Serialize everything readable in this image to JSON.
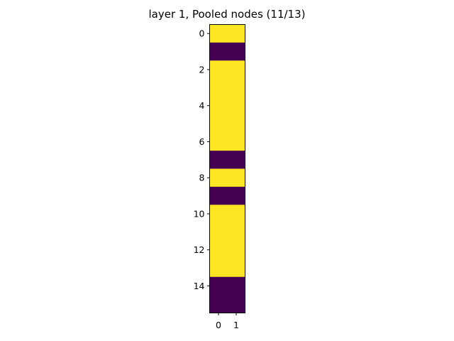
{
  "chart_data": {
    "type": "heatmap",
    "title": "layer 1, Pooled nodes (11/13)",
    "xlabel": "",
    "ylabel": "",
    "x_ticks": [
      "0",
      "1"
    ],
    "y_ticks": [
      "0",
      "2",
      "4",
      "6",
      "8",
      "10",
      "12",
      "14"
    ],
    "xlim": [
      -0.5,
      1.5
    ],
    "ylim": [
      15.5,
      -0.5
    ],
    "grid": false,
    "legend": "none",
    "colormap": "viridis",
    "colors": {
      "high": "#fde725",
      "low": "#440154"
    },
    "rows": [
      1,
      0,
      1,
      1,
      1,
      1,
      1,
      0,
      1,
      0,
      1,
      1,
      1,
      1,
      0,
      0
    ]
  }
}
